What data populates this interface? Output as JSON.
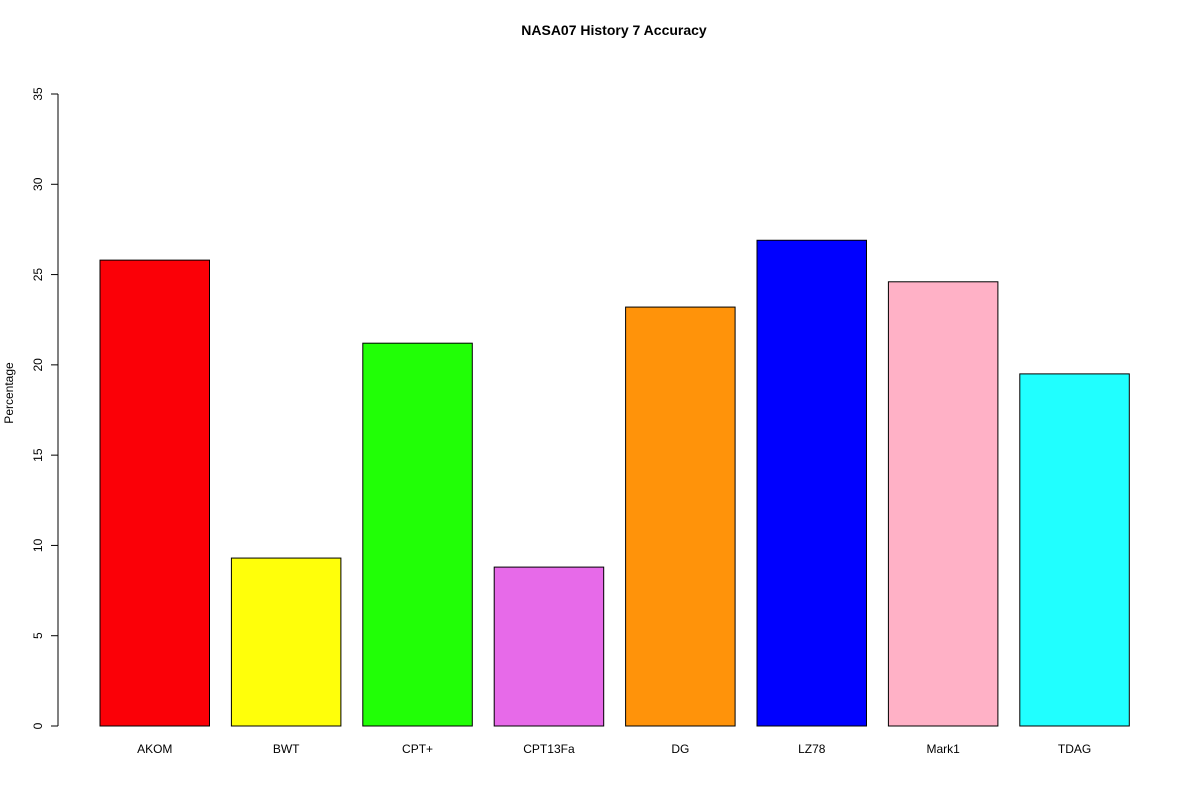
{
  "chart_data": {
    "type": "bar",
    "title": "NASA07  History  7  Accuracy",
    "xlabel": "",
    "ylabel": "Percentage",
    "ylim": [
      0,
      35
    ],
    "yticks": [
      0,
      5,
      10,
      15,
      20,
      25,
      30,
      35
    ],
    "categories": [
      "AKOM",
      "BWT",
      "CPT+",
      "CPT13Fa",
      "DG",
      "LZ78",
      "Mark1",
      "TDAG"
    ],
    "values": [
      25.8,
      9.3,
      21.2,
      8.8,
      23.2,
      26.9,
      24.6,
      19.5
    ],
    "colors": [
      "#fb0007",
      "#ffff0a",
      "#21ff06",
      "#e76ae9",
      "#ff930a",
      "#0000ff",
      "#ffb1c6",
      "#20ffff"
    ],
    "grid": false
  }
}
